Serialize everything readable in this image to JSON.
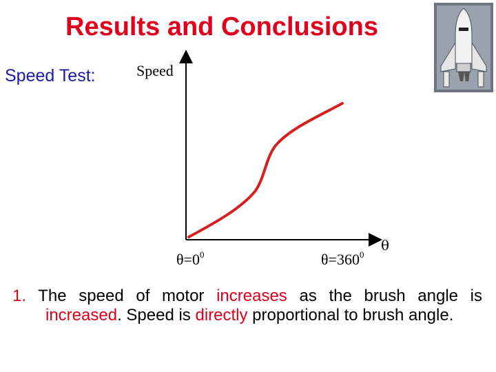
{
  "slide": {
    "title": "Results and Conclusions",
    "subtitle_label": "Speed Test:"
  },
  "chart_data": {
    "type": "line",
    "ylabel": "Speed",
    "xlabel": "θ",
    "x_ticks": {
      "start_prefix": "θ=0",
      "start_sup": "0",
      "end_prefix": "θ=360",
      "end_sup": "0"
    },
    "colors": {
      "line": "#d42020",
      "axis": "#000000"
    }
  },
  "conclusion": {
    "number": "1.",
    "text_1": " The speed of motor ",
    "highlight_1": "increases",
    "text_2": " as the brush angle is ",
    "highlight_2": "increased",
    "text_3": ". Speed is ",
    "highlight_3": "directly",
    "text_4": " proportional to brush angle."
  },
  "image": {
    "icon": "space-shuttle-icon"
  }
}
